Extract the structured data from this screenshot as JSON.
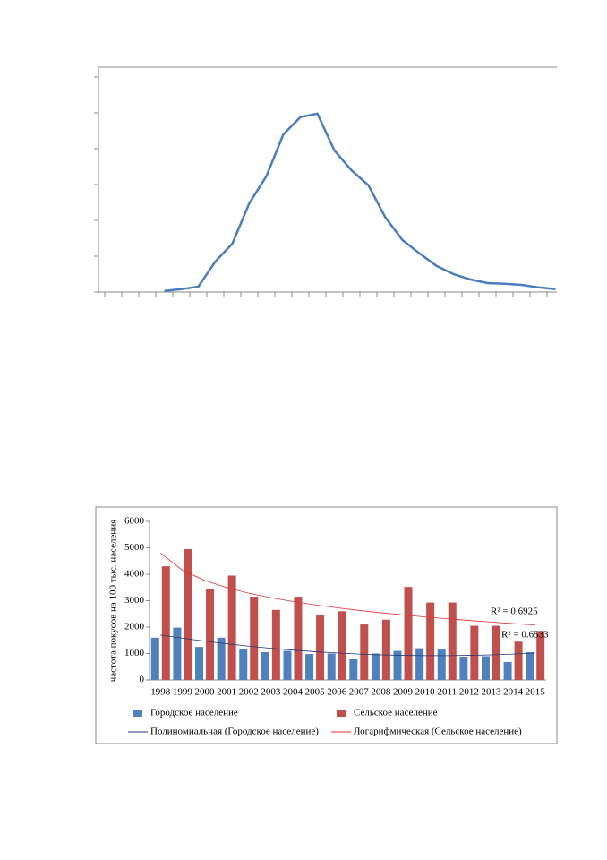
{
  "chart_data": [
    {
      "type": "line",
      "categories": [
        null,
        null,
        null,
        null,
        null,
        null,
        null,
        null,
        null,
        null,
        null,
        null,
        null,
        null,
        null,
        null,
        null,
        null,
        null,
        null,
        null,
        null,
        null,
        null
      ],
      "series": [
        {
          "color": "#4a7ebb",
          "values": [
            0.03,
            0.08,
            0.15,
            0.85,
            1.35,
            2.48,
            3.23,
            4.4,
            4.88,
            4.98,
            3.95,
            3.4,
            2.98,
            2.08,
            1.45,
            1.08,
            0.73,
            0.5,
            0.35,
            0.25,
            0.23,
            0.2,
            0.13,
            0.08
          ]
        }
      ],
      "ylim": [
        0,
        6.25
      ],
      "yticks": [
        0,
        1,
        2,
        3,
        4,
        5,
        6
      ]
    },
    {
      "type": "bar",
      "y_label": "частота покусов на 100 тыс. населения",
      "categories": [
        "1998",
        "1999",
        "2000",
        "2001",
        "2002",
        "2003",
        "2004",
        "2005",
        "2006",
        "2007",
        "2008",
        "2009",
        "2010",
        "2011",
        "2012",
        "2013",
        "2014",
        "2015"
      ],
      "series": [
        {
          "name": "Городское население",
          "color": "#4f81bd",
          "values": [
            1600,
            1980,
            1250,
            1600,
            1180,
            1050,
            1100,
            980,
            1000,
            780,
            1000,
            1100,
            1200,
            1150,
            880,
            900,
            680,
            1050
          ]
        },
        {
          "name": "Сельское население",
          "color": "#c0504d",
          "values": [
            4300,
            4950,
            3450,
            3950,
            3150,
            2650,
            3150,
            2450,
            2600,
            2100,
            2280,
            3520,
            2930,
            2930,
            2050,
            2050,
            1450,
            1850
          ]
        },
        {
          "name": "Полиномиальная (Городское население)",
          "color": "#1f3a78",
          "kind": "trend",
          "values": [
            1700,
            1580,
            1470,
            1370,
            1280,
            1200,
            1130,
            1070,
            1020,
            980,
            950,
            930,
            920,
            920,
            930,
            950,
            980,
            1020
          ]
        },
        {
          "name": "Логарифмическая (Сельское население)",
          "color": "#e03030",
          "kind": "trend",
          "values": [
            4800,
            4148,
            3766,
            3495,
            3285,
            3114,
            2969,
            2843,
            2732,
            2633,
            2544,
            2462,
            2386,
            2317,
            2252,
            2191,
            2134,
            2080
          ]
        }
      ],
      "annotations": [
        "R² = 0.6925",
        "R² = 0.6533"
      ],
      "ylim": [
        0,
        6000
      ],
      "yticks": [
        0,
        1000,
        2000,
        3000,
        4000,
        5000,
        6000
      ]
    }
  ]
}
